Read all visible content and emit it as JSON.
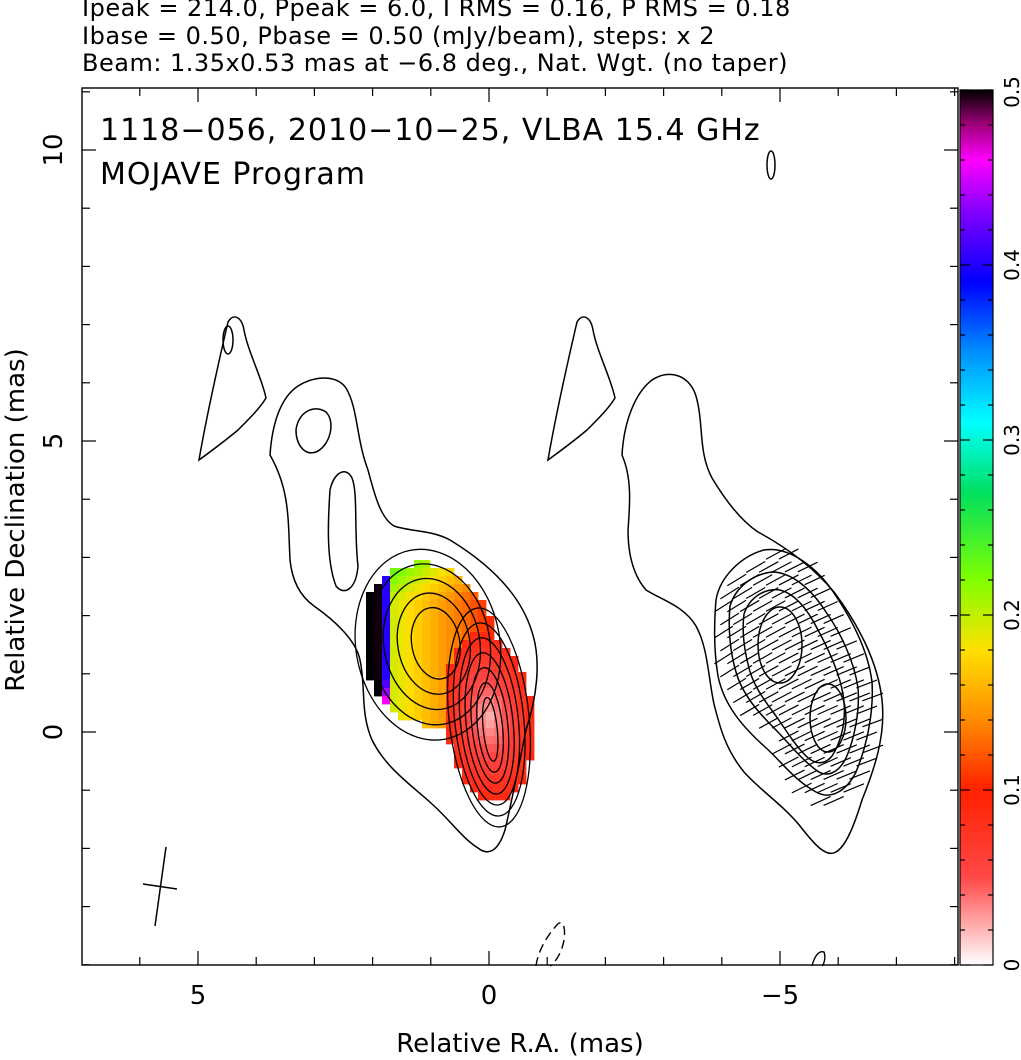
{
  "header": {
    "line1": "Ipeak = 214.0, Ppeak = 6.0, I RMS = 0.16, P RMS = 0.18",
    "line2": "Ibase = 0.50, Pbase = 0.50 (mJy/beam), steps: x 2",
    "line3": "Beam: 1.35x0.53 mas at −6.8 deg., Nat. Wgt. (no taper)"
  },
  "chart_data": {
    "type": "heatmap",
    "title": "1118−056, 2010−10−25, VLBA 15.4 GHz",
    "subtitle": "MOJAVE Program",
    "xlabel": "Relative R.A. (mas)",
    "ylabel": "Relative Declination (mas)",
    "x_ticks": [
      "5",
      "0",
      "−5"
    ],
    "y_ticks": [
      "0",
      "5",
      "10"
    ],
    "xlim": [
      7.0,
      -8.2
    ],
    "ylim": [
      -4.0,
      11.1
    ],
    "colorbar": {
      "ticks": [
        "0",
        "0.1",
        "0.2",
        "0.3",
        "0.4",
        "0.5"
      ],
      "range": [
        0,
        0.5
      ]
    },
    "beam": {
      "major_mas": 1.35,
      "minor_mas": 0.53,
      "pa_deg": -6.8
    },
    "panels": [
      {
        "name": "left",
        "x_center": 0,
        "shows": "fractional polarization color map with total intensity contours"
      },
      {
        "name": "right",
        "x_center": -5.3,
        "shows": "total intensity contours with EVPA ticks"
      }
    ],
    "components": [
      {
        "name": "core",
        "ra": 0.0,
        "dec": 0.25,
        "levels": 7
      },
      {
        "name": "jet-knot",
        "ra": 1.05,
        "dec": 1.5,
        "levels": 5
      }
    ],
    "colormap": [
      {
        "value": 0.0,
        "color": "#ffffff"
      },
      {
        "value": 0.05,
        "color": "#ff4848"
      },
      {
        "value": 0.1,
        "color": "#ff2000"
      },
      {
        "value": 0.14,
        "color": "#ff8c00"
      },
      {
        "value": 0.18,
        "color": "#ffe000"
      },
      {
        "value": 0.22,
        "color": "#80ff00"
      },
      {
        "value": 0.27,
        "color": "#00e060"
      },
      {
        "value": 0.31,
        "color": "#00ffff"
      },
      {
        "value": 0.35,
        "color": "#0090ff"
      },
      {
        "value": 0.39,
        "color": "#0000ff"
      },
      {
        "value": 0.43,
        "color": "#8000ff"
      },
      {
        "value": 0.46,
        "color": "#ff00ff"
      },
      {
        "value": 0.48,
        "color": "#a0007a"
      },
      {
        "value": 0.5,
        "color": "#000000"
      }
    ]
  }
}
